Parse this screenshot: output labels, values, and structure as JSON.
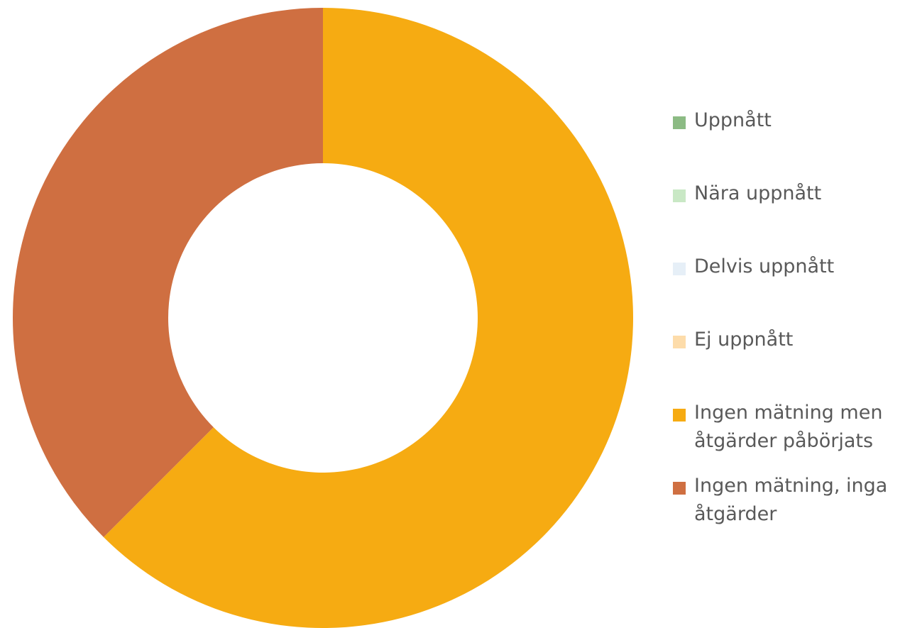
{
  "chart_data": {
    "type": "donut",
    "categories": [
      "Uppnått",
      "Nära uppnått",
      "Delvis uppnått",
      "Ej uppnått",
      "Ingen mätning men åtgärder påbörjats",
      "Ingen mätning, inga åtgärder"
    ],
    "values": [
      0,
      0,
      0,
      0,
      62.5,
      37.5
    ],
    "colors": [
      "#8cbb84",
      "#c9e8c5",
      "#e6eff7",
      "#fddcaa",
      "#f6ab12",
      "#cf6f41"
    ],
    "legend": "right"
  }
}
